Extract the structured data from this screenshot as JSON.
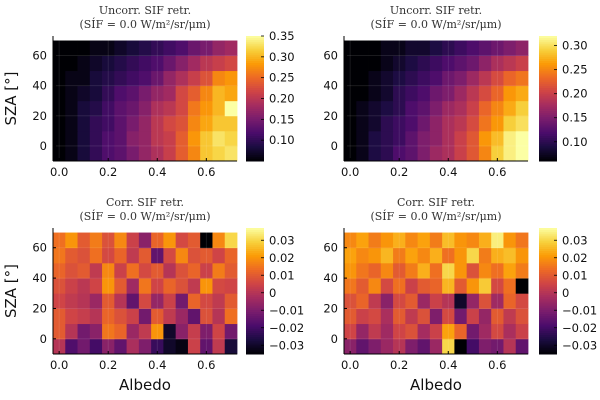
{
  "colormap": [
    "#000004",
    "#1b0c41",
    "#4a0c6b",
    "#781c6d",
    "#a52c60",
    "#cf4446",
    "#ed6925",
    "#fb9b06",
    "#f7d13d",
    "#fcffa4"
  ],
  "chart_data": [
    {
      "type": "heatmap",
      "title": "Uncorr. SIF retr.",
      "subtitle": "(SÍF = 0.0 W/m²/sr/μm)",
      "xlabel": "",
      "ylabel": "SZA [°]",
      "xticks": [
        "0.0",
        "0.2",
        "0.4",
        "0.6"
      ],
      "yticks": [
        "0",
        "20",
        "40",
        "60"
      ],
      "xlim": [
        -0.025,
        0.725
      ],
      "ylim": [
        -10,
        73
      ],
      "x_centers": [
        0.0,
        0.05,
        0.1,
        0.15,
        0.2,
        0.25,
        0.3,
        0.35,
        0.4,
        0.45,
        0.5,
        0.55,
        0.6,
        0.65,
        0.7
      ],
      "y_centers": [
        -5,
        5,
        15,
        25,
        35,
        45,
        55,
        65
      ],
      "clim": [
        0.05,
        0.35
      ],
      "cticks": [
        "0.10",
        "0.15",
        "0.20",
        "0.25",
        "0.30",
        "0.35"
      ],
      "cticks_values": [
        0.1,
        0.15,
        0.2,
        0.25,
        0.3,
        0.35
      ],
      "grid": true,
      "colorbar": "right",
      "values": [
        [
          0.05,
          0.06,
          0.08,
          0.1,
          0.12,
          0.13,
          0.15,
          0.17,
          0.19,
          0.21,
          0.24,
          0.27,
          0.31,
          0.32,
          0.33
        ],
        [
          0.05,
          0.06,
          0.08,
          0.1,
          0.12,
          0.13,
          0.16,
          0.17,
          0.2,
          0.21,
          0.24,
          0.28,
          0.31,
          0.33,
          0.32
        ],
        [
          0.05,
          0.06,
          0.08,
          0.1,
          0.11,
          0.13,
          0.15,
          0.17,
          0.2,
          0.22,
          0.23,
          0.27,
          0.29,
          0.31,
          0.31
        ],
        [
          0.05,
          0.06,
          0.08,
          0.09,
          0.11,
          0.13,
          0.14,
          0.16,
          0.19,
          0.2,
          0.22,
          0.26,
          0.28,
          0.3,
          0.35
        ],
        [
          0.05,
          0.06,
          0.07,
          0.08,
          0.1,
          0.12,
          0.13,
          0.15,
          0.17,
          0.18,
          0.22,
          0.24,
          0.27,
          0.3,
          0.29
        ],
        [
          0.05,
          0.06,
          0.06,
          0.08,
          0.09,
          0.1,
          0.11,
          0.12,
          0.14,
          0.17,
          0.19,
          0.21,
          0.23,
          0.27,
          0.28
        ],
        [
          0.05,
          0.05,
          0.06,
          0.07,
          0.08,
          0.09,
          0.1,
          0.11,
          0.12,
          0.14,
          0.16,
          0.18,
          0.2,
          0.21,
          0.22
        ],
        [
          0.05,
          0.05,
          0.05,
          0.06,
          0.06,
          0.07,
          0.08,
          0.09,
          0.1,
          0.11,
          0.12,
          0.14,
          0.15,
          0.17,
          0.18
        ]
      ]
    },
    {
      "type": "heatmap",
      "title": "Uncorr. SIF retr.",
      "subtitle": "(SÍF = 0.0 W/m²/sr/μm)",
      "xlabel": "",
      "ylabel": "",
      "xticks": [
        "0.0",
        "0.2",
        "0.4",
        "0.6"
      ],
      "yticks": [
        "0",
        "20",
        "40",
        "60"
      ],
      "xlim": [
        -0.025,
        0.725
      ],
      "ylim": [
        -10,
        73
      ],
      "x_centers": [
        0.0,
        0.05,
        0.1,
        0.15,
        0.2,
        0.25,
        0.3,
        0.35,
        0.4,
        0.45,
        0.5,
        0.55,
        0.6,
        0.65,
        0.7
      ],
      "y_centers": [
        -5,
        5,
        15,
        25,
        35,
        45,
        55,
        65
      ],
      "clim": [
        0.06,
        0.32
      ],
      "cticks": [
        "0.10",
        "0.15",
        "0.20",
        "0.25",
        "0.30"
      ],
      "cticks_values": [
        0.1,
        0.15,
        0.2,
        0.25,
        0.3
      ],
      "grid": true,
      "colorbar": "right",
      "values": [
        [
          0.06,
          0.07,
          0.09,
          0.1,
          0.12,
          0.13,
          0.15,
          0.17,
          0.18,
          0.2,
          0.22,
          0.25,
          0.29,
          0.31,
          0.32
        ],
        [
          0.06,
          0.07,
          0.09,
          0.1,
          0.11,
          0.13,
          0.15,
          0.16,
          0.18,
          0.2,
          0.22,
          0.26,
          0.28,
          0.31,
          0.32
        ],
        [
          0.06,
          0.07,
          0.08,
          0.1,
          0.11,
          0.12,
          0.14,
          0.16,
          0.18,
          0.19,
          0.21,
          0.24,
          0.26,
          0.29,
          0.3
        ],
        [
          0.06,
          0.07,
          0.08,
          0.09,
          0.1,
          0.12,
          0.13,
          0.15,
          0.17,
          0.18,
          0.2,
          0.23,
          0.25,
          0.27,
          0.29
        ],
        [
          0.06,
          0.06,
          0.07,
          0.08,
          0.1,
          0.11,
          0.12,
          0.14,
          0.15,
          0.17,
          0.19,
          0.21,
          0.23,
          0.26,
          0.27
        ],
        [
          0.06,
          0.06,
          0.07,
          0.08,
          0.09,
          0.1,
          0.11,
          0.12,
          0.14,
          0.15,
          0.17,
          0.19,
          0.21,
          0.23,
          0.24
        ],
        [
          0.06,
          0.06,
          0.06,
          0.07,
          0.08,
          0.09,
          0.1,
          0.11,
          0.12,
          0.13,
          0.14,
          0.16,
          0.18,
          0.19,
          0.2
        ],
        [
          0.06,
          0.06,
          0.06,
          0.07,
          0.07,
          0.08,
          0.08,
          0.09,
          0.1,
          0.11,
          0.12,
          0.13,
          0.14,
          0.15,
          0.16
        ]
      ]
    },
    {
      "type": "heatmap",
      "title": "Corr. SIF retr.",
      "subtitle": "(SÍF = 0.0 W/m²/sr/μm)",
      "xlabel": "Albedo",
      "ylabel": "SZA [°]",
      "xticks": [
        "0.0",
        "0.2",
        "0.4",
        "0.6"
      ],
      "yticks": [
        "0",
        "20",
        "40",
        "60"
      ],
      "xlim": [
        -0.025,
        0.725
      ],
      "ylim": [
        -10,
        73
      ],
      "x_centers": [
        0.0,
        0.05,
        0.1,
        0.15,
        0.2,
        0.25,
        0.3,
        0.35,
        0.4,
        0.45,
        0.5,
        0.55,
        0.6,
        0.65,
        0.7
      ],
      "y_centers": [
        -5,
        5,
        15,
        25,
        35,
        45,
        55,
        65
      ],
      "clim": [
        -0.035,
        0.037
      ],
      "cticks": [
        "−0.03",
        "−0.02",
        "−0.01",
        "0",
        "0.01",
        "0.02",
        "0.03"
      ],
      "cticks_values": [
        -0.03,
        -0.02,
        -0.01,
        0,
        0.01,
        0.02,
        0.03
      ],
      "grid": true,
      "colorbar": "right",
      "values": [
        [
          0.0,
          -0.018,
          -0.012,
          -0.02,
          -0.008,
          -0.015,
          -0.002,
          -0.01,
          -0.022,
          -0.03,
          -0.033,
          0.004,
          -0.015,
          0.002,
          -0.028
        ],
        [
          0.01,
          0.0,
          -0.012,
          -0.008,
          0.015,
          0.012,
          -0.005,
          0.002,
          0.02,
          -0.03,
          -0.008,
          0.003,
          -0.01,
          0.005,
          -0.012
        ],
        [
          0.01,
          0.005,
          0.003,
          0.0,
          0.012,
          0.008,
          0.004,
          -0.012,
          0.01,
          0.002,
          -0.005,
          -0.015,
          0.008,
          0.0,
          0.014
        ],
        [
          0.005,
          0.002,
          0.0,
          -0.005,
          0.01,
          0.0,
          -0.015,
          0.006,
          -0.006,
          0.004,
          -0.012,
          0.012,
          0.006,
          0.002,
          0.01
        ],
        [
          0.008,
          0.004,
          0.001,
          0.005,
          0.02,
          0.01,
          -0.004,
          0.015,
          0.005,
          0.012,
          0.008,
          0.002,
          0.02,
          0.006,
          0.005
        ],
        [
          0.012,
          0.008,
          0.01,
          0.002,
          0.018,
          0.004,
          0.014,
          0.006,
          0.01,
          0.0,
          0.008,
          0.012,
          0.004,
          0.016,
          0.01
        ],
        [
          0.015,
          0.01,
          0.008,
          0.014,
          0.006,
          0.012,
          0.002,
          0.01,
          -0.015,
          0.006,
          0.018,
          0.008,
          0.01,
          0.005,
          0.012
        ],
        [
          0.014,
          0.02,
          0.01,
          0.016,
          0.008,
          0.018,
          0.004,
          -0.008,
          0.012,
          0.02,
          0.006,
          0.01,
          -0.035,
          0.018,
          0.03
        ]
      ]
    },
    {
      "type": "heatmap",
      "title": "Corr. SIF retr.",
      "subtitle": "(SÍF = 0.0 W/m²/sr/μm)",
      "xlabel": "Albedo",
      "ylabel": "",
      "xticks": [
        "0.0",
        "0.2",
        "0.4",
        "0.6"
      ],
      "yticks": [
        "0",
        "20",
        "40",
        "60"
      ],
      "xlim": [
        -0.025,
        0.725
      ],
      "ylim": [
        -10,
        73
      ],
      "x_centers": [
        0.0,
        0.05,
        0.1,
        0.15,
        0.2,
        0.25,
        0.3,
        0.35,
        0.4,
        0.45,
        0.5,
        0.55,
        0.6,
        0.65,
        0.7
      ],
      "y_centers": [
        -5,
        5,
        15,
        25,
        35,
        45,
        55,
        65
      ],
      "clim": [
        -0.035,
        0.037
      ],
      "cticks": [
        "−0.03",
        "−0.02",
        "−0.01",
        "0",
        "0.01",
        "0.02",
        "0.03"
      ],
      "cticks_values": [
        -0.03,
        -0.02,
        -0.01,
        0,
        0.01,
        0.02,
        0.03
      ],
      "grid": true,
      "colorbar": "right",
      "values": [
        [
          -0.008,
          -0.015,
          -0.01,
          -0.005,
          0.0,
          -0.01,
          -0.015,
          -0.005,
          0.03,
          -0.036,
          -0.02,
          -0.01,
          -0.012,
          0.0,
          -0.015
        ],
        [
          0.005,
          -0.006,
          0.002,
          -0.004,
          0.005,
          0.008,
          -0.003,
          0.004,
          0.022,
          0.012,
          -0.012,
          -0.004,
          0.006,
          -0.002,
          0.004
        ],
        [
          0.01,
          0.004,
          0.006,
          -0.002,
          0.01,
          0.002,
          0.008,
          -0.01,
          0.006,
          -0.012,
          0.004,
          -0.006,
          0.01,
          0.002,
          0.008
        ],
        [
          0.008,
          0.012,
          0.002,
          -0.008,
          0.006,
          0.01,
          -0.005,
          0.004,
          0.0,
          -0.03,
          -0.006,
          0.008,
          -0.004,
          0.012,
          0.006
        ],
        [
          0.015,
          0.01,
          0.018,
          0.006,
          0.014,
          0.004,
          0.01,
          0.012,
          0.025,
          0.01,
          0.02,
          0.028,
          0.006,
          0.014,
          -0.035
        ],
        [
          0.02,
          0.015,
          0.012,
          0.018,
          0.01,
          0.016,
          0.024,
          0.014,
          0.03,
          0.02,
          0.008,
          0.018,
          0.014,
          0.022,
          0.016
        ],
        [
          0.022,
          0.018,
          0.02,
          0.025,
          0.016,
          0.022,
          0.018,
          0.024,
          0.014,
          0.02,
          0.03,
          0.016,
          0.024,
          0.026,
          0.02
        ],
        [
          0.018,
          0.022,
          0.016,
          0.02,
          0.024,
          0.018,
          0.022,
          0.016,
          0.026,
          0.02,
          0.018,
          0.024,
          0.034,
          0.02,
          0.015
        ]
      ]
    }
  ]
}
